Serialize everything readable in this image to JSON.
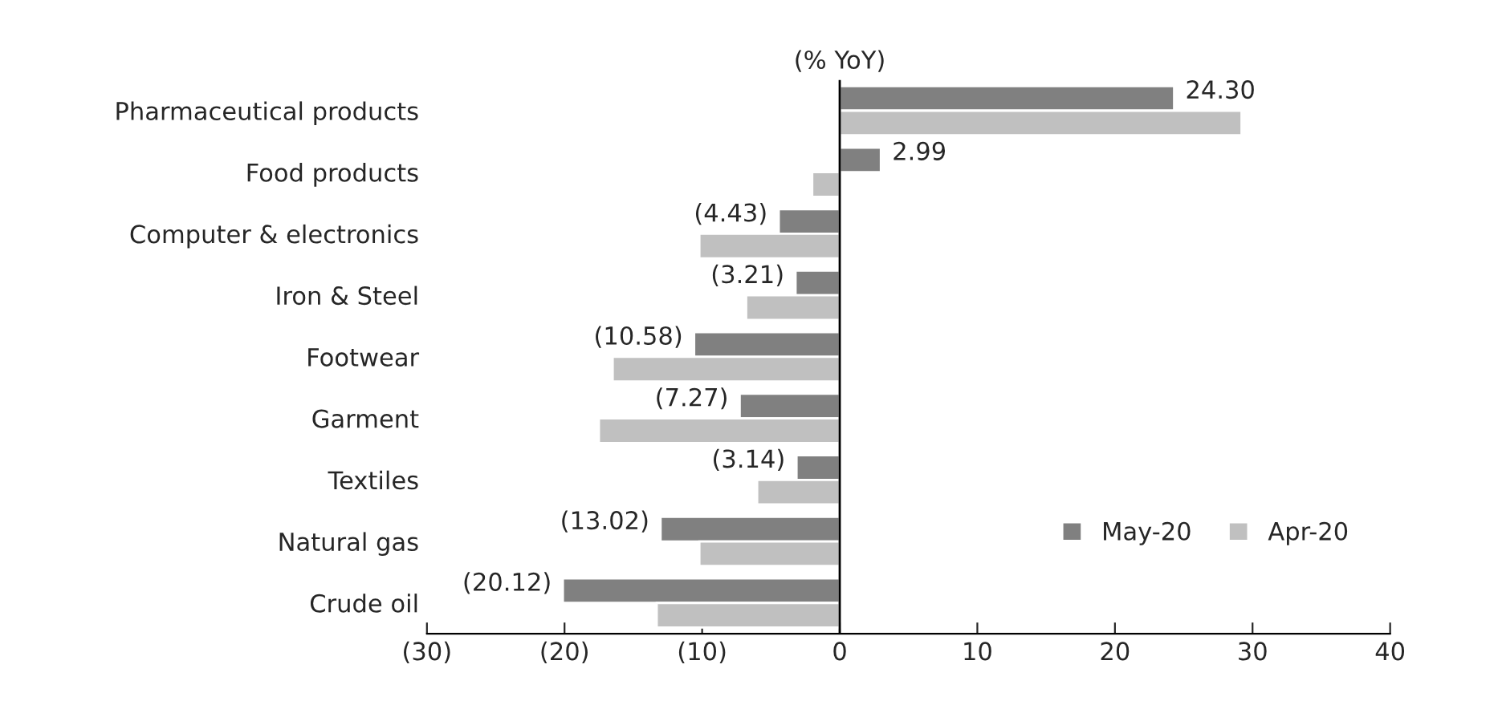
{
  "chart_data": {
    "type": "bar",
    "orientation": "horizontal",
    "xlabel": "(% YoY)",
    "categories": [
      "Pharmaceutical products",
      "Food products",
      "Computer & electronics",
      "Iron & Steel",
      "Footwear",
      "Garment",
      "Textiles",
      "Natural gas",
      "Crude oil"
    ],
    "series": [
      {
        "name": "May-20",
        "color": "#808080",
        "values": [
          24.3,
          2.99,
          -4.43,
          -3.21,
          -10.58,
          -7.27,
          -3.14,
          -13.02,
          -20.12
        ],
        "value_labels": [
          "24.30",
          "2.99",
          "(4.43)",
          "(3.21)",
          "(10.58)",
          "(7.27)",
          "(3.14)",
          "(13.02)",
          "(20.12)"
        ]
      },
      {
        "name": "Apr-20",
        "color": "#c0c0c0",
        "values": [
          29.2,
          -2.0,
          -10.2,
          -6.8,
          -16.5,
          -17.5,
          -6.0,
          -10.2,
          -13.3
        ]
      }
    ],
    "xlim": [
      -30,
      40
    ],
    "xticks": [
      {
        "value": -30,
        "label": "(30)"
      },
      {
        "value": -20,
        "label": "(20)"
      },
      {
        "value": -10,
        "label": "(10)"
      },
      0,
      10,
      20,
      30,
      40
    ],
    "ref_lines": [
      {
        "axis": "x",
        "value": 0,
        "color": "#000000"
      }
    ],
    "legend": "bottom right",
    "grid": false
  }
}
